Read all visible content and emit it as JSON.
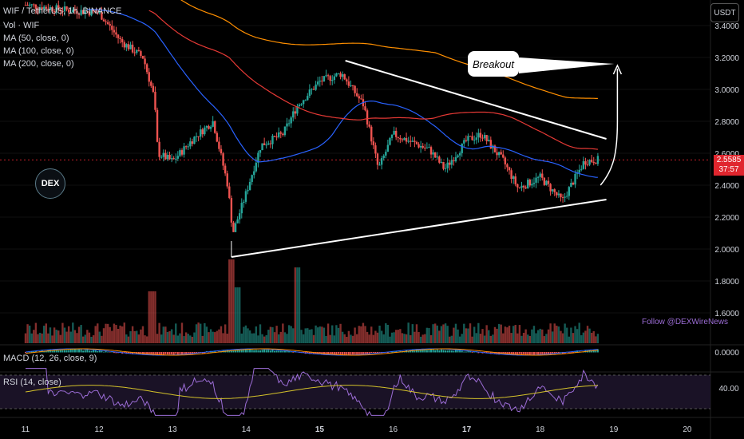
{
  "legend": {
    "symbol": "WIF / TetherUS, 1h, BINANCE",
    "vol": "Vol · WIF",
    "ma50": "MA (50, close, 0)",
    "ma100": "MA (100, close, 0)",
    "ma200": "MA (200, close, 0)",
    "macd": "MACD (12, 26, close, 9)",
    "rsi": "RSI (14, close)"
  },
  "currency_label": "USDT",
  "price_tag": {
    "price": "2.5585",
    "countdown": "37:57"
  },
  "rsi_tag": "40.00",
  "macd_zero_label": "0.0000",
  "annotation": "Breakout",
  "watermark": "Follow @DEXWireNews",
  "logo_text": "DEX",
  "colors": {
    "up": "#26a69a",
    "down": "#ef5350",
    "ma50": "#2962ff",
    "ma100": "#e53935",
    "ma200": "#ff8f00",
    "rsi_line": "#9c6dd6",
    "rsi_ma": "#d4c22a",
    "price_tag": "#e0262e"
  },
  "chart_data": {
    "type": "candlestick",
    "title": "WIF / TetherUS, 1h, BINANCE",
    "x_tick_labels": [
      "11",
      "12",
      "13",
      "14",
      "15",
      "16",
      "17",
      "18",
      "19",
      "20"
    ],
    "y_tick_labels": [
      "3.4000",
      "3.2000",
      "3.0000",
      "2.8000",
      "2.6000",
      "2.4000",
      "2.2000",
      "2.0000",
      "1.8000",
      "1.6000"
    ],
    "ylim": [
      1.5,
      3.5
    ],
    "last_price": 2.5585,
    "approx_close_path": [
      {
        "x": 11.0,
        "y": 3.53
      },
      {
        "x": 11.5,
        "y": 3.5
      },
      {
        "x": 12.0,
        "y": 3.48
      },
      {
        "x": 12.3,
        "y": 3.3
      },
      {
        "x": 12.6,
        "y": 3.2
      },
      {
        "x": 12.75,
        "y": 2.95
      },
      {
        "x": 12.8,
        "y": 2.6
      },
      {
        "x": 13.0,
        "y": 2.55
      },
      {
        "x": 13.3,
        "y": 2.7
      },
      {
        "x": 13.55,
        "y": 2.8
      },
      {
        "x": 13.75,
        "y": 2.4
      },
      {
        "x": 13.82,
        "y": 2.1
      },
      {
        "x": 14.0,
        "y": 2.35
      },
      {
        "x": 14.2,
        "y": 2.65
      },
      {
        "x": 14.5,
        "y": 2.72
      },
      {
        "x": 14.7,
        "y": 2.9
      },
      {
        "x": 15.0,
        "y": 3.05
      },
      {
        "x": 15.3,
        "y": 3.1
      },
      {
        "x": 15.6,
        "y": 2.9
      },
      {
        "x": 15.8,
        "y": 2.5
      },
      {
        "x": 16.0,
        "y": 2.72
      },
      {
        "x": 16.5,
        "y": 2.62
      },
      {
        "x": 16.7,
        "y": 2.5
      },
      {
        "x": 17.0,
        "y": 2.68
      },
      {
        "x": 17.2,
        "y": 2.72
      },
      {
        "x": 17.5,
        "y": 2.55
      },
      {
        "x": 17.7,
        "y": 2.38
      },
      {
        "x": 18.0,
        "y": 2.45
      },
      {
        "x": 18.3,
        "y": 2.3
      },
      {
        "x": 18.6,
        "y": 2.55
      },
      {
        "x": 18.8,
        "y": 2.56
      }
    ],
    "volume_scale": "relative",
    "rsi_level": 40,
    "annotations": [
      "Triangle upper trendline from ~15.35 (3.18) to ~18.9 (2.69)",
      "Triangle lower trendline from ~13.8 (1.95) to ~18.9 (2.31)",
      "Breakout arrow near 19 pointing toward 3.15"
    ]
  }
}
